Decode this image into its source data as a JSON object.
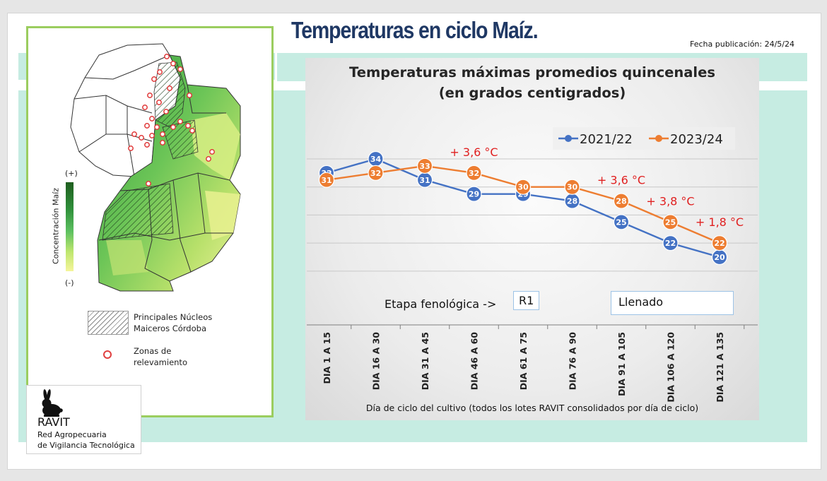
{
  "page": {
    "title": "Temperaturas en ciclo Maíz.",
    "pubdate": "Fecha publicación: 24/5/24",
    "colors": {
      "title": "#1f3864",
      "band": "#c6ece2",
      "panel_border": "#9bcd5f"
    }
  },
  "map": {
    "legend_high": "(+)",
    "legend_low": "(-)",
    "legend_axis": "Concentración Maíz",
    "hatch_label_1": "Principales Núcleos",
    "hatch_label_2": "Maiceros Córdoba",
    "dots_label_1": "Zonas de",
    "dots_label_2": "relevamiento"
  },
  "ravit": {
    "name": "RAVIT",
    "line1": "Red Agropecuaria",
    "line2": "de Vigilancia Tecnológica",
    "icon": "rabbit-icon"
  },
  "chart_data": {
    "type": "line",
    "title_line1": "Temperaturas máximas promedios quincenales",
    "title_line2": "(en grados centigrados)",
    "categories": [
      "DIA 1 A 15",
      "DIA 16 A 30",
      "DIA 31 A 45",
      "DIA 46 A 60",
      "DIA 61 A 75",
      "DIA 76 A 90",
      "DIA 91 A 105",
      "DIA 106 A 120",
      "DIA 121 A 135"
    ],
    "series": [
      {
        "name": "2021/22",
        "color": "#4472c4",
        "values": [
          32,
          34,
          31,
          29,
          29,
          28,
          25,
          22,
          20
        ]
      },
      {
        "name": "2023/24",
        "color": "#ed7d31",
        "values": [
          31,
          32,
          33,
          32,
          30,
          30,
          28,
          25,
          22
        ]
      }
    ],
    "annotations": [
      {
        "text": "+ 3,6 °C",
        "category": "DIA 46 A 60"
      },
      {
        "text": "+ 3,6 °C",
        "category": "DIA 91 A 105"
      },
      {
        "text": "+ 3,8 °C",
        "category": "DIA 106 A 120"
      },
      {
        "text": "+ 1,8 °C",
        "category": "DIA 121 A 135"
      }
    ],
    "annotation_color": "#e02020",
    "ylim": [
      18,
      36
    ],
    "grid": true,
    "legend_position": "top-right",
    "etapa_label": "Etapa fenológica ->",
    "stage_labels": [
      "R1",
      "Llenado"
    ],
    "xlabel": "Día de ciclo del cultivo (todos los lotes RAVIT consolidados por día de ciclo)"
  }
}
